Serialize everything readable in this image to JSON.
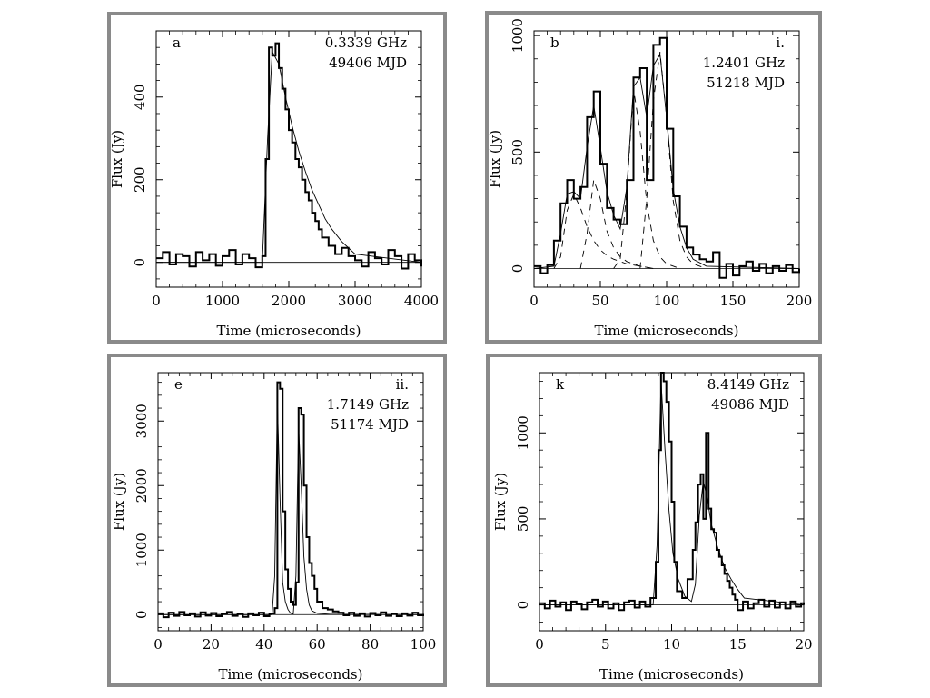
{
  "chart_data": [
    {
      "type": "line",
      "panel_letter": "a",
      "annotation_lines": [
        "0.3339 GHz",
        "49406 MJD"
      ],
      "xlabel": "Time (microseconds)",
      "ylabel": "Flux (Jy)",
      "xlim": [
        0,
        4000
      ],
      "ylim": [
        -60,
        560
      ],
      "xticks": [
        0,
        1000,
        2000,
        3000,
        4000
      ],
      "yticks": [
        0,
        200,
        400
      ],
      "baseline": 0,
      "series": [
        {
          "style": "step",
          "x": [
            0,
            100,
            200,
            300,
            400,
            500,
            600,
            700,
            800,
            900,
            1000,
            1100,
            1200,
            1300,
            1400,
            1500,
            1600,
            1650,
            1700,
            1750,
            1800,
            1850,
            1900,
            1950,
            2000,
            2050,
            2100,
            2150,
            2200,
            2250,
            2300,
            2350,
            2400,
            2450,
            2500,
            2600,
            2700,
            2800,
            2900,
            3000,
            3100,
            3200,
            3300,
            3400,
            3500,
            3600,
            3700,
            3800,
            3900,
            4000
          ],
          "y": [
            10,
            25,
            -5,
            20,
            15,
            -10,
            25,
            5,
            20,
            -8,
            15,
            30,
            -5,
            20,
            10,
            -12,
            15,
            250,
            520,
            500,
            530,
            470,
            420,
            370,
            320,
            290,
            250,
            230,
            200,
            170,
            150,
            120,
            100,
            80,
            60,
            40,
            20,
            35,
            15,
            5,
            -10,
            25,
            10,
            -5,
            30,
            15,
            -15,
            20,
            5,
            -10
          ]
        },
        {
          "style": "smooth",
          "x": [
            0,
            1600,
            1680,
            1750,
            1850,
            1950,
            2050,
            2150,
            2250,
            2350,
            2450,
            2550,
            2650,
            2800,
            3000,
            4000
          ],
          "y": [
            0,
            0,
            300,
            510,
            480,
            400,
            330,
            270,
            220,
            175,
            140,
            105,
            80,
            50,
            20,
            0
          ]
        }
      ]
    },
    {
      "type": "line",
      "panel_letter": "b",
      "annotation_lines": [
        "i.",
        "1.2401 GHz",
        "51218 MJD"
      ],
      "xlabel": "Time (microseconds)",
      "ylabel": "Flux (Jy)",
      "xlim": [
        0,
        200
      ],
      "ylim": [
        -80,
        1020
      ],
      "xticks": [
        0,
        50,
        100,
        150,
        200
      ],
      "yticks": [
        0,
        500,
        1000
      ],
      "baseline": 0,
      "series": [
        {
          "style": "step",
          "x": [
            0,
            5,
            10,
            15,
            20,
            25,
            30,
            35,
            40,
            45,
            50,
            55,
            60,
            65,
            70,
            75,
            80,
            85,
            90,
            95,
            100,
            105,
            110,
            115,
            120,
            125,
            130,
            135,
            140,
            145,
            150,
            155,
            160,
            165,
            170,
            175,
            180,
            185,
            190,
            195,
            200
          ],
          "y": [
            10,
            -20,
            15,
            120,
            280,
            380,
            300,
            350,
            650,
            760,
            450,
            260,
            210,
            190,
            380,
            820,
            860,
            380,
            960,
            990,
            600,
            310,
            180,
            90,
            60,
            40,
            30,
            70,
            -40,
            20,
            -30,
            10,
            30,
            -10,
            20,
            -20,
            10,
            -10,
            15,
            -15,
            0
          ]
        },
        {
          "style": "smooth",
          "x": [
            0,
            15,
            20,
            25,
            30,
            35,
            40,
            45,
            50,
            55,
            60,
            65,
            70,
            75,
            80,
            85,
            90,
            95,
            100,
            105,
            110,
            115,
            120,
            130,
            200
          ],
          "y": [
            0,
            10,
            150,
            320,
            330,
            300,
            520,
            700,
            520,
            330,
            230,
            170,
            350,
            780,
            820,
            650,
            870,
            920,
            650,
            340,
            180,
            90,
            40,
            10,
            0
          ]
        },
        {
          "style": "dashed",
          "x": [
            15,
            20,
            25,
            30,
            35,
            40,
            45,
            50,
            55,
            60,
            65,
            70,
            80,
            90
          ],
          "y": [
            0,
            50,
            250,
            320,
            260,
            180,
            120,
            80,
            55,
            40,
            30,
            20,
            10,
            0
          ]
        },
        {
          "style": "dashed",
          "x": [
            35,
            40,
            45,
            50,
            55,
            60,
            65,
            70,
            80,
            90
          ],
          "y": [
            0,
            150,
            380,
            300,
            160,
            90,
            50,
            30,
            10,
            0
          ]
        },
        {
          "style": "dashed",
          "x": [
            60,
            65,
            70,
            75,
            80,
            85,
            90,
            95,
            100,
            110
          ],
          "y": [
            0,
            40,
            330,
            770,
            590,
            280,
            120,
            50,
            20,
            0
          ]
        },
        {
          "style": "dashed",
          "x": [
            80,
            85,
            90,
            95,
            100,
            105,
            110,
            115,
            120,
            130
          ],
          "y": [
            0,
            300,
            720,
            930,
            650,
            290,
            120,
            50,
            20,
            0
          ]
        }
      ]
    },
    {
      "type": "line",
      "panel_letter": "e",
      "annotation_lines": [
        "ii.",
        "1.7149 GHz",
        "51174 MJD"
      ],
      "xlabel": "Time (microseconds)",
      "ylabel": "Flux (Jy)",
      "xlim": [
        0,
        100
      ],
      "ylim": [
        -250,
        3750
      ],
      "xticks": [
        0,
        20,
        40,
        60,
        80,
        100
      ],
      "yticks": [
        0,
        1000,
        2000,
        3000
      ],
      "baseline": 0,
      "series": [
        {
          "style": "step",
          "x": [
            0,
            2,
            4,
            6,
            8,
            10,
            12,
            14,
            16,
            18,
            20,
            22,
            24,
            26,
            28,
            30,
            32,
            34,
            36,
            38,
            40,
            42,
            44,
            45,
            46,
            47,
            48,
            49,
            50,
            51,
            52,
            53,
            54,
            55,
            56,
            57,
            58,
            59,
            60,
            62,
            64,
            66,
            68,
            70,
            72,
            74,
            76,
            78,
            80,
            82,
            84,
            86,
            88,
            90,
            92,
            94,
            96,
            98,
            100
          ],
          "y": [
            20,
            -40,
            30,
            -20,
            40,
            -10,
            20,
            -30,
            35,
            -15,
            25,
            -25,
            10,
            40,
            -20,
            15,
            -35,
            20,
            -10,
            30,
            -25,
            15,
            100,
            3600,
            3500,
            1600,
            700,
            400,
            200,
            150,
            500,
            3200,
            3100,
            2000,
            1200,
            800,
            600,
            400,
            200,
            100,
            80,
            50,
            30,
            -10,
            30,
            -20,
            20,
            -30,
            25,
            -10,
            35,
            -20,
            15,
            -25,
            20,
            -15,
            30,
            -10,
            10
          ]
        },
        {
          "style": "smooth",
          "x": [
            0,
            43,
            44,
            45,
            46,
            47,
            48,
            49,
            50,
            51,
            52,
            53,
            54,
            55,
            56,
            57,
            58,
            60,
            65,
            100
          ],
          "y": [
            0,
            0,
            600,
            3300,
            1800,
            500,
            200,
            80,
            20,
            10,
            600,
            2900,
            2000,
            900,
            400,
            150,
            60,
            20,
            5,
            0
          ]
        }
      ]
    },
    {
      "type": "line",
      "panel_letter": "k",
      "annotation_lines": [
        "8.4149 GHz",
        "49086 MJD"
      ],
      "xlabel": "Time (microseconds)",
      "ylabel": "Flux (Jy)",
      "xlim": [
        0,
        20
      ],
      "ylim": [
        -150,
        1350
      ],
      "xticks": [
        0,
        5,
        10,
        15,
        20
      ],
      "yticks": [
        0,
        500,
        1000
      ],
      "baseline": 0,
      "series": [
        {
          "style": "step",
          "x": [
            0,
            0.4,
            0.8,
            1.2,
            1.6,
            2,
            2.4,
            2.8,
            3.2,
            3.6,
            4,
            4.4,
            4.8,
            5.2,
            5.6,
            6,
            6.4,
            6.8,
            7.2,
            7.6,
            8,
            8.4,
            8.8,
            9.0,
            9.2,
            9.4,
            9.6,
            9.8,
            10.0,
            10.2,
            10.4,
            10.8,
            11.2,
            11.6,
            11.8,
            12.0,
            12.2,
            12.4,
            12.6,
            12.8,
            13.0,
            13.2,
            13.4,
            13.6,
            13.8,
            14.0,
            14.2,
            14.4,
            14.6,
            14.8,
            15.0,
            15.4,
            15.8,
            16.2,
            16.6,
            17,
            17.4,
            17.8,
            18.2,
            18.6,
            19,
            19.4,
            19.8,
            20
          ],
          "y": [
            10,
            -20,
            25,
            -10,
            15,
            -30,
            20,
            5,
            -25,
            15,
            30,
            -10,
            20,
            -20,
            10,
            -30,
            15,
            25,
            -15,
            20,
            -10,
            40,
            250,
            900,
            1350,
            1300,
            1180,
            950,
            600,
            250,
            80,
            40,
            150,
            320,
            480,
            700,
            760,
            500,
            1000,
            560,
            440,
            420,
            320,
            280,
            230,
            180,
            140,
            100,
            60,
            30,
            -30,
            20,
            -20,
            10,
            30,
            -10,
            25,
            -15,
            15,
            -20,
            20,
            -10,
            10,
            0
          ]
        },
        {
          "style": "smooth",
          "x": [
            0,
            8.6,
            8.9,
            9.2,
            9.5,
            9.8,
            10.1,
            10.5,
            11,
            11.5,
            11.8,
            12.1,
            12.4,
            12.7,
            13,
            13.5,
            14,
            14.5,
            15,
            15.5,
            20
          ],
          "y": [
            0,
            0,
            350,
            1300,
            900,
            550,
            300,
            150,
            50,
            20,
            120,
            520,
            720,
            620,
            470,
            330,
            220,
            150,
            90,
            40,
            0
          ]
        }
      ]
    }
  ]
}
